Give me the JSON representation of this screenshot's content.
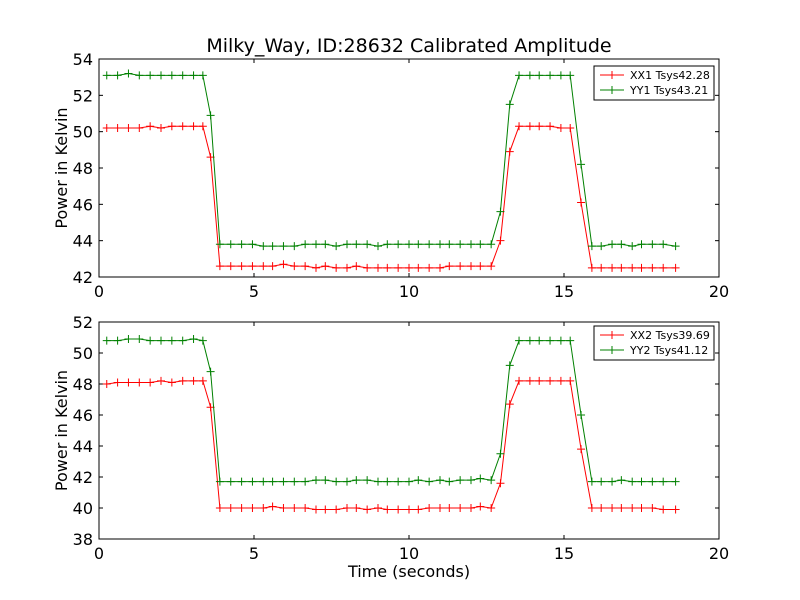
{
  "title": "Milky_Way, ID:28632 Calibrated Amplitude",
  "chart_data": [
    {
      "type": "line",
      "xlabel": "",
      "ylabel": "Power in Kelvin",
      "xlim": [
        0,
        20
      ],
      "ylim": [
        42,
        54
      ],
      "xticks": [
        0,
        5,
        10,
        15,
        20
      ],
      "yticks": [
        42,
        44,
        46,
        48,
        50,
        52,
        54
      ],
      "legend_position": "top-right",
      "x": [
        0.25,
        0.6,
        0.95,
        1.3,
        1.65,
        2.0,
        2.35,
        2.7,
        3.05,
        3.35,
        3.6,
        3.9,
        4.25,
        4.6,
        4.95,
        5.3,
        5.6,
        5.95,
        6.3,
        6.65,
        7.0,
        7.3,
        7.65,
        8.0,
        8.3,
        8.65,
        9.0,
        9.3,
        9.65,
        10.0,
        10.3,
        10.65,
        11.0,
        11.3,
        11.65,
        12.0,
        12.3,
        12.65,
        12.95,
        13.25,
        13.55,
        13.9,
        14.2,
        14.55,
        14.9,
        15.2,
        15.55,
        15.9,
        16.2,
        16.55,
        16.85,
        17.2,
        17.5,
        17.85,
        18.2,
        18.6
      ],
      "series": [
        {
          "name": "XX1 Tsys42.28",
          "color": "#ff0000",
          "values": [
            50.2,
            50.2,
            50.2,
            50.2,
            50.3,
            50.2,
            50.3,
            50.3,
            50.3,
            50.3,
            48.6,
            42.6,
            42.6,
            42.6,
            42.6,
            42.6,
            42.6,
            42.7,
            42.6,
            42.6,
            42.5,
            42.6,
            42.5,
            42.5,
            42.6,
            42.5,
            42.5,
            42.5,
            42.5,
            42.5,
            42.5,
            42.5,
            42.5,
            42.6,
            42.6,
            42.6,
            42.6,
            42.6,
            44.0,
            48.9,
            50.3,
            50.3,
            50.3,
            50.3,
            50.2,
            50.2,
            46.1,
            42.5,
            42.5,
            42.5,
            42.5,
            42.5,
            42.5,
            42.5,
            42.5,
            42.5
          ]
        },
        {
          "name": "YY1 Tsys43.21",
          "color": "#008000",
          "values": [
            53.1,
            53.1,
            53.2,
            53.1,
            53.1,
            53.1,
            53.1,
            53.1,
            53.1,
            53.1,
            50.9,
            43.8,
            43.8,
            43.8,
            43.8,
            43.7,
            43.7,
            43.7,
            43.7,
            43.8,
            43.8,
            43.8,
            43.7,
            43.8,
            43.8,
            43.8,
            43.7,
            43.8,
            43.8,
            43.8,
            43.8,
            43.8,
            43.8,
            43.8,
            43.8,
            43.8,
            43.8,
            43.8,
            45.6,
            51.5,
            53.1,
            53.1,
            53.1,
            53.1,
            53.1,
            53.1,
            48.2,
            43.7,
            43.7,
            43.8,
            43.8,
            43.7,
            43.8,
            43.8,
            43.8,
            43.7
          ]
        }
      ]
    },
    {
      "type": "line",
      "xlabel": "Time (seconds)",
      "ylabel": "Power in Kelvin",
      "xlim": [
        0,
        20
      ],
      "ylim": [
        38,
        52
      ],
      "xticks": [
        0,
        5,
        10,
        15,
        20
      ],
      "yticks": [
        38,
        40,
        42,
        44,
        46,
        48,
        50,
        52
      ],
      "legend_position": "top-right",
      "x": [
        0.25,
        0.6,
        0.95,
        1.3,
        1.65,
        2.0,
        2.35,
        2.7,
        3.05,
        3.35,
        3.6,
        3.9,
        4.25,
        4.6,
        4.95,
        5.3,
        5.6,
        5.95,
        6.3,
        6.65,
        7.0,
        7.3,
        7.65,
        8.0,
        8.3,
        8.65,
        9.0,
        9.3,
        9.65,
        10.0,
        10.3,
        10.65,
        11.0,
        11.3,
        11.65,
        12.0,
        12.3,
        12.65,
        12.95,
        13.25,
        13.55,
        13.9,
        14.2,
        14.55,
        14.9,
        15.2,
        15.55,
        15.9,
        16.2,
        16.55,
        16.85,
        17.2,
        17.5,
        17.85,
        18.2,
        18.6
      ],
      "series": [
        {
          "name": "XX2 Tsys39.69",
          "color": "#ff0000",
          "values": [
            48.0,
            48.1,
            48.1,
            48.1,
            48.1,
            48.2,
            48.1,
            48.2,
            48.2,
            48.2,
            46.5,
            40.0,
            40.0,
            40.0,
            40.0,
            40.0,
            40.1,
            40.0,
            40.0,
            40.0,
            39.9,
            39.9,
            39.9,
            40.0,
            40.0,
            39.9,
            40.0,
            39.9,
            39.9,
            39.9,
            39.9,
            40.0,
            40.0,
            40.0,
            40.0,
            40.0,
            40.1,
            40.0,
            41.6,
            46.7,
            48.2,
            48.2,
            48.2,
            48.2,
            48.2,
            48.2,
            43.8,
            40.0,
            40.0,
            40.0,
            40.0,
            40.0,
            40.0,
            40.0,
            39.9,
            39.9
          ]
        },
        {
          "name": "YY2 Tsys41.12",
          "color": "#008000",
          "values": [
            50.8,
            50.8,
            50.9,
            50.9,
            50.8,
            50.8,
            50.8,
            50.8,
            50.9,
            50.8,
            48.8,
            41.7,
            41.7,
            41.7,
            41.7,
            41.7,
            41.7,
            41.7,
            41.7,
            41.7,
            41.8,
            41.8,
            41.7,
            41.7,
            41.8,
            41.8,
            41.7,
            41.7,
            41.7,
            41.7,
            41.8,
            41.7,
            41.8,
            41.7,
            41.8,
            41.8,
            41.9,
            41.8,
            43.5,
            49.2,
            50.8,
            50.8,
            50.8,
            50.8,
            50.8,
            50.8,
            46.0,
            41.7,
            41.7,
            41.7,
            41.8,
            41.7,
            41.7,
            41.7,
            41.7,
            41.7
          ]
        }
      ]
    }
  ]
}
